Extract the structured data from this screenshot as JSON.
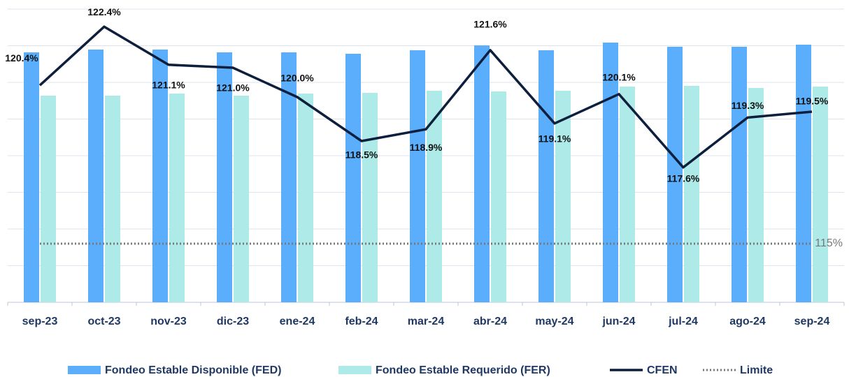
{
  "chart_data": {
    "type": "bar",
    "categories": [
      "sep-23",
      "oct-23",
      "nov-23",
      "dic-23",
      "ene-24",
      "feb-24",
      "mar-24",
      "abr-24",
      "may-24",
      "jun-24",
      "jul-24",
      "ago-24",
      "sep-24"
    ],
    "ylim": [
      0,
      420
    ],
    "y2lim": [
      113,
      123
    ],
    "grid": true,
    "legend": "bottom",
    "series": [
      {
        "name": "Fondeo Estable Disponible (FED)",
        "type": "bar",
        "color": "#5aaefc",
        "values": [
          358,
          362,
          362,
          358,
          358,
          356,
          361,
          368,
          361,
          372,
          366,
          366,
          369
        ]
      },
      {
        "name": "Fondeo Estable Requerido (FER)",
        "type": "bar",
        "color": "#aeeae8",
        "values": [
          296,
          296,
          299,
          296,
          299,
          300,
          303,
          302,
          303,
          309,
          310,
          307,
          309
        ]
      },
      {
        "name": "CFEN",
        "type": "line",
        "axis": "y2",
        "color": "#0d1f3c",
        "values": [
          120.4,
          122.4,
          121.1,
          121.0,
          120.0,
          118.5,
          118.9,
          121.6,
          119.1,
          120.1,
          117.6,
          119.3,
          119.5
        ],
        "value_labels": [
          "120.4%",
          "122.4%",
          "121.1%",
          "121.0%",
          "120.0%",
          "118.5%",
          "118.9%",
          "121.6%",
          "119.1%",
          "120.1%",
          "117.6%",
          "119.3%",
          "119.5%"
        ]
      },
      {
        "name": "Limite",
        "type": "hline",
        "axis": "y2",
        "color": "#777777",
        "value": 115,
        "value_label": "115%"
      }
    ]
  }
}
